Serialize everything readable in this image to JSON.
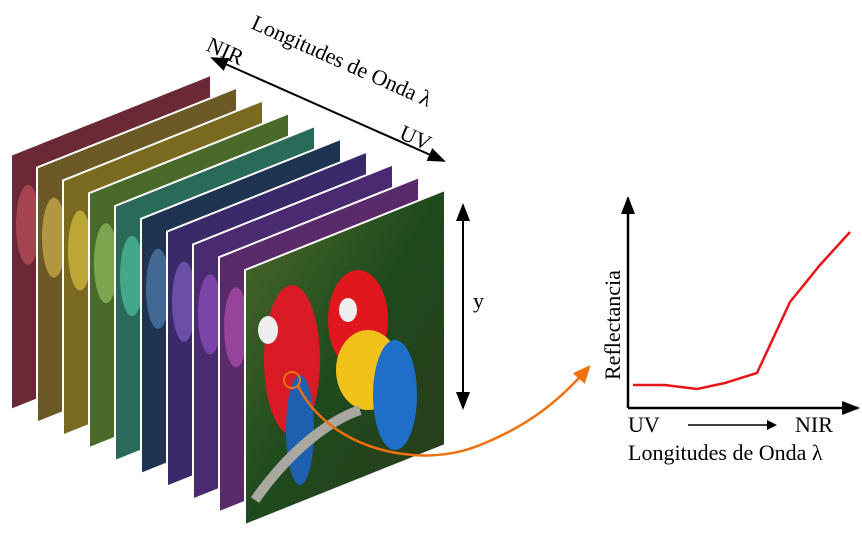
{
  "cube": {
    "axis_label": "Longitudes de Onda λ",
    "start_label": "NIR",
    "end_label": "UV",
    "height_label": "y"
  },
  "plot": {
    "y_label": "Reflectancia",
    "x_start": "UV",
    "x_end": "NIR",
    "x_label": "Longitudes de Onda λ"
  }
}
